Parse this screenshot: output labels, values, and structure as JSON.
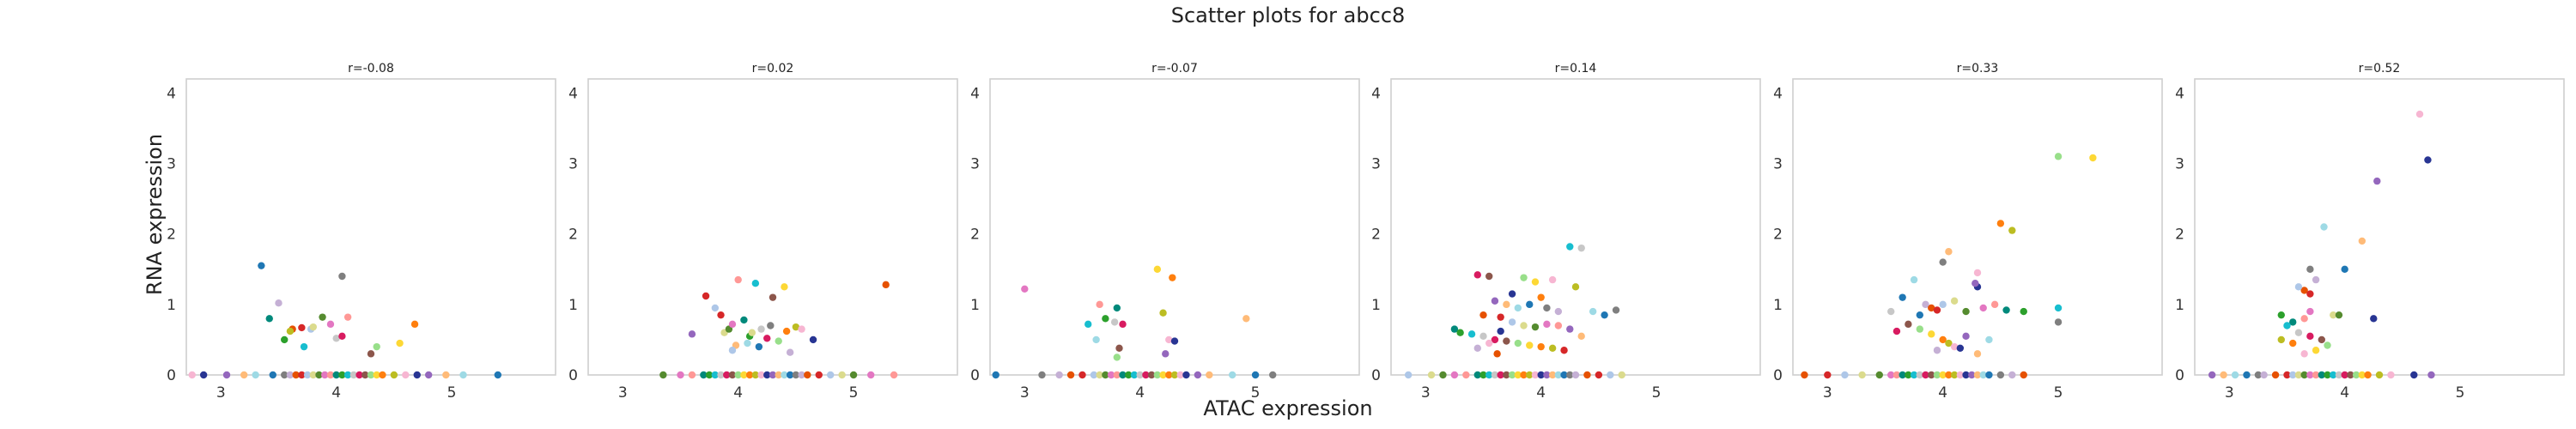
{
  "figure": {
    "title": "Scatter plots for abcc8",
    "xlabel": "ATAC expression",
    "ylabel": "RNA expression"
  },
  "colors": {
    "frame": "#cfcfcf",
    "palette": [
      "#1f77b4",
      "#ff7f0e",
      "#2ca02c",
      "#d62728",
      "#9467bd",
      "#8c564b",
      "#e377c2",
      "#7f7f7f",
      "#bcbd22",
      "#17becf",
      "#aec7e8",
      "#ffbb78",
      "#98df8a",
      "#ff9896",
      "#c5b0d5",
      "#f7b6d2",
      "#c7c7c7",
      "#dbdb8d",
      "#9edae5",
      "#fdd835",
      "#00897b",
      "#e65100",
      "#283593",
      "#d81b60",
      "#558b2f"
    ]
  },
  "chart_data": [
    {
      "type": "scatter",
      "title": "r=-0.08",
      "xlim": [
        2.7,
        5.9
      ],
      "ylim": [
        0,
        4.2
      ],
      "xticks": [
        3,
        4,
        5
      ],
      "yticks": [
        0,
        1,
        2,
        3,
        4
      ],
      "grid": false,
      "points": [
        [
          3.35,
          1.55
        ],
        [
          4.05,
          1.4
        ],
        [
          3.5,
          1.02
        ],
        [
          3.62,
          0.65
        ],
        [
          3.7,
          0.67
        ],
        [
          3.78,
          0.65
        ],
        [
          3.8,
          0.68
        ],
        [
          3.88,
          0.82
        ],
        [
          3.95,
          0.72
        ],
        [
          4.1,
          0.82
        ],
        [
          3.42,
          0.8
        ],
        [
          3.55,
          0.5
        ],
        [
          3.72,
          0.4
        ],
        [
          4.0,
          0.52
        ],
        [
          4.05,
          0.55
        ],
        [
          4.3,
          0.3
        ],
        [
          4.35,
          0.4
        ],
        [
          4.55,
          0.45
        ],
        [
          4.68,
          0.72
        ],
        [
          3.6,
          0.62
        ],
        [
          2.75,
          0
        ],
        [
          2.85,
          0
        ],
        [
          3.05,
          0
        ],
        [
          3.2,
          0
        ],
        [
          3.3,
          0
        ],
        [
          3.45,
          0
        ],
        [
          3.55,
          0
        ],
        [
          3.6,
          0
        ],
        [
          3.65,
          0
        ],
        [
          3.7,
          0
        ],
        [
          3.75,
          0
        ],
        [
          3.8,
          0
        ],
        [
          3.85,
          0
        ],
        [
          3.9,
          0
        ],
        [
          3.95,
          0
        ],
        [
          4.0,
          0
        ],
        [
          4.05,
          0
        ],
        [
          4.1,
          0
        ],
        [
          4.15,
          0
        ],
        [
          4.2,
          0
        ],
        [
          4.25,
          0
        ],
        [
          4.3,
          0
        ],
        [
          4.35,
          0
        ],
        [
          4.4,
          0
        ],
        [
          4.5,
          0
        ],
        [
          4.6,
          0
        ],
        [
          4.7,
          0
        ],
        [
          4.8,
          0
        ],
        [
          4.95,
          0
        ],
        [
          5.1,
          0
        ],
        [
          5.4,
          0
        ]
      ]
    },
    {
      "type": "scatter",
      "title": "r=0.02",
      "xlim": [
        2.7,
        5.9
      ],
      "ylim": [
        0,
        4.2
      ],
      "xticks": [
        3,
        4,
        5
      ],
      "yticks": [
        0,
        1,
        2,
        3,
        4
      ],
      "grid": false,
      "points": [
        [
          3.72,
          1.12
        ],
        [
          3.8,
          0.95
        ],
        [
          3.88,
          0.6
        ],
        [
          3.92,
          0.65
        ],
        [
          3.95,
          0.72
        ],
        [
          4.0,
          1.35
        ],
        [
          4.05,
          0.78
        ],
        [
          4.1,
          0.55
        ],
        [
          4.15,
          1.3
        ],
        [
          4.2,
          0.65
        ],
        [
          4.25,
          0.52
        ],
        [
          4.3,
          1.1
        ],
        [
          4.35,
          0.48
        ],
        [
          4.4,
          1.25
        ],
        [
          4.42,
          0.62
        ],
        [
          4.5,
          0.68
        ],
        [
          4.55,
          0.65
        ],
        [
          4.65,
          0.5
        ],
        [
          3.6,
          0.58
        ],
        [
          3.98,
          0.42
        ],
        [
          4.08,
          0.45
        ],
        [
          4.18,
          0.4
        ],
        [
          4.28,
          0.7
        ],
        [
          4.45,
          0.32
        ],
        [
          5.28,
          1.28
        ],
        [
          3.85,
          0.85
        ],
        [
          3.95,
          0.35
        ],
        [
          4.12,
          0.6
        ],
        [
          3.35,
          0
        ],
        [
          3.5,
          0
        ],
        [
          3.6,
          0
        ],
        [
          3.7,
          0
        ],
        [
          3.75,
          0
        ],
        [
          3.8,
          0
        ],
        [
          3.85,
          0
        ],
        [
          3.9,
          0
        ],
        [
          3.95,
          0
        ],
        [
          4.0,
          0
        ],
        [
          4.05,
          0
        ],
        [
          4.1,
          0
        ],
        [
          4.15,
          0
        ],
        [
          4.2,
          0
        ],
        [
          4.25,
          0
        ],
        [
          4.3,
          0
        ],
        [
          4.35,
          0
        ],
        [
          4.4,
          0
        ],
        [
          4.45,
          0
        ],
        [
          4.5,
          0
        ],
        [
          4.55,
          0
        ],
        [
          4.6,
          0
        ],
        [
          4.7,
          0
        ],
        [
          4.8,
          0
        ],
        [
          4.9,
          0
        ],
        [
          5.0,
          0
        ],
        [
          5.15,
          0
        ],
        [
          5.35,
          0
        ]
      ]
    },
    {
      "type": "scatter",
      "title": "r=-0.07",
      "xlim": [
        2.7,
        5.9
      ],
      "ylim": [
        0,
        4.2
      ],
      "xticks": [
        3,
        4,
        5
      ],
      "yticks": [
        0,
        1,
        2,
        3,
        4
      ],
      "grid": false,
      "points": [
        [
          3.0,
          1.22
        ],
        [
          3.65,
          1.0
        ],
        [
          3.8,
          0.95
        ],
        [
          3.7,
          0.8
        ],
        [
          3.55,
          0.72
        ],
        [
          3.78,
          0.75
        ],
        [
          3.85,
          0.72
        ],
        [
          3.82,
          0.38
        ],
        [
          3.8,
          0.25
        ],
        [
          4.15,
          1.5
        ],
        [
          4.28,
          1.38
        ],
        [
          4.2,
          0.88
        ],
        [
          4.25,
          0.5
        ],
        [
          4.3,
          0.48
        ],
        [
          4.22,
          0.3
        ],
        [
          4.92,
          0.8
        ],
        [
          3.62,
          0.5
        ],
        [
          2.75,
          0
        ],
        [
          3.15,
          0
        ],
        [
          3.3,
          0
        ],
        [
          3.4,
          0
        ],
        [
          3.5,
          0
        ],
        [
          3.6,
          0
        ],
        [
          3.65,
          0
        ],
        [
          3.7,
          0
        ],
        [
          3.75,
          0
        ],
        [
          3.8,
          0
        ],
        [
          3.85,
          0
        ],
        [
          3.9,
          0
        ],
        [
          3.95,
          0
        ],
        [
          4.0,
          0
        ],
        [
          4.05,
          0
        ],
        [
          4.1,
          0
        ],
        [
          4.15,
          0
        ],
        [
          4.2,
          0
        ],
        [
          4.25,
          0
        ],
        [
          4.3,
          0
        ],
        [
          4.35,
          0
        ],
        [
          4.4,
          0
        ],
        [
          4.5,
          0
        ],
        [
          4.6,
          0
        ],
        [
          4.8,
          0
        ],
        [
          5.0,
          0
        ],
        [
          5.15,
          0
        ]
      ]
    },
    {
      "type": "scatter",
      "title": "r=0.14",
      "xlim": [
        2.7,
        5.9
      ],
      "ylim": [
        0,
        4.2
      ],
      "xticks": [
        3,
        4,
        5
      ],
      "yticks": [
        0,
        1,
        2,
        3,
        4
      ],
      "grid": false,
      "points": [
        [
          4.25,
          1.82
        ],
        [
          4.35,
          1.8
        ],
        [
          3.45,
          1.42
        ],
        [
          3.55,
          1.4
        ],
        [
          3.85,
          1.38
        ],
        [
          3.95,
          1.32
        ],
        [
          4.0,
          1.1
        ],
        [
          4.3,
          1.25
        ],
        [
          4.1,
          1.35
        ],
        [
          3.75,
          1.15
        ],
        [
          3.6,
          1.05
        ],
        [
          3.7,
          1.0
        ],
        [
          3.8,
          0.95
        ],
        [
          3.9,
          1.0
        ],
        [
          4.05,
          0.95
        ],
        [
          4.15,
          0.9
        ],
        [
          3.5,
          0.85
        ],
        [
          3.65,
          0.82
        ],
        [
          3.75,
          0.75
        ],
        [
          3.85,
          0.7
        ],
        [
          3.95,
          0.68
        ],
        [
          4.05,
          0.72
        ],
        [
          4.15,
          0.7
        ],
        [
          3.25,
          0.65
        ],
        [
          3.3,
          0.6
        ],
        [
          3.4,
          0.58
        ],
        [
          3.5,
          0.55
        ],
        [
          3.6,
          0.5
        ],
        [
          3.7,
          0.48
        ],
        [
          3.8,
          0.45
        ],
        [
          3.9,
          0.42
        ],
        [
          4.0,
          0.4
        ],
        [
          4.1,
          0.38
        ],
        [
          3.55,
          0.45
        ],
        [
          3.65,
          0.62
        ],
        [
          4.25,
          0.65
        ],
        [
          4.35,
          0.55
        ],
        [
          4.45,
          0.9
        ],
        [
          4.55,
          0.85
        ],
        [
          4.65,
          0.92
        ],
        [
          3.45,
          0.38
        ],
        [
          3.62,
          0.3
        ],
        [
          4.2,
          0.35
        ],
        [
          2.85,
          0
        ],
        [
          3.05,
          0
        ],
        [
          3.15,
          0
        ],
        [
          3.25,
          0
        ],
        [
          3.35,
          0
        ],
        [
          3.45,
          0
        ],
        [
          3.5,
          0
        ],
        [
          3.55,
          0
        ],
        [
          3.6,
          0
        ],
        [
          3.65,
          0
        ],
        [
          3.7,
          0
        ],
        [
          3.75,
          0
        ],
        [
          3.8,
          0
        ],
        [
          3.85,
          0
        ],
        [
          3.9,
          0
        ],
        [
          3.95,
          0
        ],
        [
          4.0,
          0
        ],
        [
          4.05,
          0
        ],
        [
          4.1,
          0
        ],
        [
          4.15,
          0
        ],
        [
          4.2,
          0
        ],
        [
          4.25,
          0
        ],
        [
          4.3,
          0
        ],
        [
          4.4,
          0
        ],
        [
          4.5,
          0
        ],
        [
          4.6,
          0
        ],
        [
          4.7,
          0
        ]
      ]
    },
    {
      "type": "scatter",
      "title": "r=0.33",
      "xlim": [
        2.7,
        5.9
      ],
      "ylim": [
        0,
        4.2
      ],
      "xticks": [
        3,
        4,
        5
      ],
      "yticks": [
        0,
        1,
        2,
        3,
        4
      ],
      "grid": false,
      "points": [
        [
          5.0,
          3.1
        ],
        [
          5.3,
          3.08
        ],
        [
          4.5,
          2.15
        ],
        [
          4.6,
          2.05
        ],
        [
          4.3,
          1.45
        ],
        [
          4.3,
          1.25
        ],
        [
          4.28,
          1.3
        ],
        [
          4.05,
          1.75
        ],
        [
          3.75,
          1.35
        ],
        [
          3.65,
          1.1
        ],
        [
          4.0,
          1.6
        ],
        [
          3.85,
          1.0
        ],
        [
          3.9,
          0.95
        ],
        [
          3.95,
          0.92
        ],
        [
          4.0,
          1.0
        ],
        [
          4.1,
          1.05
        ],
        [
          4.2,
          0.9
        ],
        [
          4.35,
          0.95
        ],
        [
          4.45,
          1.0
        ],
        [
          4.55,
          0.92
        ],
        [
          4.7,
          0.9
        ],
        [
          5.0,
          0.95
        ],
        [
          3.55,
          0.9
        ],
        [
          3.6,
          0.62
        ],
        [
          3.7,
          0.72
        ],
        [
          3.8,
          0.65
        ],
        [
          3.9,
          0.58
        ],
        [
          4.0,
          0.5
        ],
        [
          4.05,
          0.45
        ],
        [
          4.1,
          0.4
        ],
        [
          4.15,
          0.38
        ],
        [
          4.2,
          0.55
        ],
        [
          4.3,
          0.3
        ],
        [
          4.4,
          0.5
        ],
        [
          3.8,
          0.85
        ],
        [
          5.0,
          0.75
        ],
        [
          3.95,
          0.35
        ],
        [
          2.8,
          0
        ],
        [
          3.0,
          0
        ],
        [
          3.15,
          0
        ],
        [
          3.3,
          0
        ],
        [
          3.45,
          0
        ],
        [
          3.55,
          0
        ],
        [
          3.6,
          0
        ],
        [
          3.65,
          0
        ],
        [
          3.7,
          0
        ],
        [
          3.75,
          0
        ],
        [
          3.8,
          0
        ],
        [
          3.85,
          0
        ],
        [
          3.9,
          0
        ],
        [
          3.95,
          0
        ],
        [
          4.0,
          0
        ],
        [
          4.05,
          0
        ],
        [
          4.1,
          0
        ],
        [
          4.15,
          0
        ],
        [
          4.2,
          0
        ],
        [
          4.25,
          0
        ],
        [
          4.3,
          0
        ],
        [
          4.35,
          0
        ],
        [
          4.4,
          0
        ],
        [
          4.5,
          0
        ],
        [
          4.6,
          0
        ],
        [
          4.7,
          0
        ]
      ]
    },
    {
      "type": "scatter",
      "title": "r=0.52",
      "xlim": [
        2.7,
        5.9
      ],
      "ylim": [
        0,
        4.2
      ],
      "xticks": [
        3,
        4,
        5
      ],
      "yticks": [
        0,
        1,
        2,
        3,
        4
      ],
      "grid": false,
      "points": [
        [
          4.65,
          3.7
        ],
        [
          4.72,
          3.05
        ],
        [
          4.28,
          2.75
        ],
        [
          4.15,
          1.9
        ],
        [
          3.82,
          2.1
        ],
        [
          4.0,
          1.5
        ],
        [
          3.7,
          1.5
        ],
        [
          3.75,
          1.35
        ],
        [
          3.65,
          1.2
        ],
        [
          3.7,
          1.15
        ],
        [
          3.6,
          1.25
        ],
        [
          3.9,
          0.85
        ],
        [
          3.95,
          0.85
        ],
        [
          3.7,
          0.9
        ],
        [
          3.65,
          0.8
        ],
        [
          3.55,
          0.75
        ],
        [
          3.45,
          0.85
        ],
        [
          3.5,
          0.7
        ],
        [
          3.6,
          0.6
        ],
        [
          3.7,
          0.55
        ],
        [
          3.8,
          0.5
        ],
        [
          3.85,
          0.42
        ],
        [
          3.75,
          0.35
        ],
        [
          3.55,
          0.45
        ],
        [
          3.45,
          0.5
        ],
        [
          3.65,
          0.3
        ],
        [
          4.25,
          0.8
        ],
        [
          2.85,
          0
        ],
        [
          2.95,
          0
        ],
        [
          3.05,
          0
        ],
        [
          3.15,
          0
        ],
        [
          3.25,
          0
        ],
        [
          3.3,
          0
        ],
        [
          3.4,
          0
        ],
        [
          3.5,
          0
        ],
        [
          3.55,
          0
        ],
        [
          3.6,
          0
        ],
        [
          3.65,
          0
        ],
        [
          3.7,
          0
        ],
        [
          3.75,
          0
        ],
        [
          3.8,
          0
        ],
        [
          3.85,
          0
        ],
        [
          3.9,
          0
        ],
        [
          3.95,
          0
        ],
        [
          4.0,
          0
        ],
        [
          4.05,
          0
        ],
        [
          4.1,
          0
        ],
        [
          4.15,
          0
        ],
        [
          4.2,
          0
        ],
        [
          4.3,
          0
        ],
        [
          4.4,
          0
        ],
        [
          4.6,
          0
        ],
        [
          4.75,
          0
        ]
      ]
    }
  ]
}
